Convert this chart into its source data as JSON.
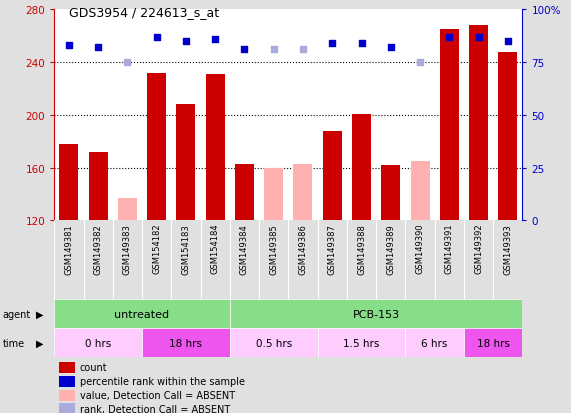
{
  "title": "GDS3954 / 224613_s_at",
  "samples": [
    "GSM149381",
    "GSM149382",
    "GSM149383",
    "GSM154182",
    "GSM154183",
    "GSM154184",
    "GSM149384",
    "GSM149385",
    "GSM149386",
    "GSM149387",
    "GSM149388",
    "GSM149389",
    "GSM149390",
    "GSM149391",
    "GSM149392",
    "GSM149393"
  ],
  "bar_values": [
    178,
    172,
    null,
    232,
    208,
    231,
    163,
    null,
    null,
    188,
    201,
    162,
    null,
    265,
    268,
    248
  ],
  "bar_absent_values": [
    null,
    null,
    137,
    null,
    null,
    null,
    null,
    160,
    163,
    null,
    null,
    null,
    165,
    null,
    null,
    null
  ],
  "percentile_present": [
    83,
    82,
    null,
    87,
    85,
    86,
    81,
    null,
    null,
    84,
    84,
    82,
    null,
    87,
    87,
    85
  ],
  "percentile_absent": [
    null,
    null,
    75,
    null,
    null,
    null,
    null,
    81,
    81,
    null,
    null,
    null,
    75,
    null,
    null,
    null
  ],
  "ylim_left": [
    120,
    280
  ],
  "ylim_right": [
    0,
    100
  ],
  "yticks_left": [
    120,
    160,
    200,
    240,
    280
  ],
  "yticks_right": [
    0,
    25,
    50,
    75,
    100
  ],
  "left_color": "#cc0000",
  "right_color": "#0000cc",
  "bar_color_present": "#cc0000",
  "bar_color_absent": "#ffb0b0",
  "dot_color_present": "#0000cc",
  "dot_color_absent": "#aaaadd",
  "background_color": "#e0e0e0",
  "plot_bg_color": "#ffffff",
  "sample_bg_color": "#c8c8c8",
  "agent_green": "#88dd88",
  "time_pink_light": "#ffccff",
  "time_pink_dark": "#ee55ee",
  "legend_items": [
    {
      "label": "count",
      "color": "#cc0000"
    },
    {
      "label": "percentile rank within the sample",
      "color": "#0000cc"
    },
    {
      "label": "value, Detection Call = ABSENT",
      "color": "#ffb0b0"
    },
    {
      "label": "rank, Detection Call = ABSENT",
      "color": "#aaaadd"
    }
  ],
  "time_groups": [
    {
      "label": "0 hrs",
      "start": 0,
      "end": 3,
      "color": "#ffccff"
    },
    {
      "label": "18 hrs",
      "start": 3,
      "end": 6,
      "color": "#ee55ee"
    },
    {
      "label": "0.5 hrs",
      "start": 6,
      "end": 9,
      "color": "#ffccff"
    },
    {
      "label": "1.5 hrs",
      "start": 9,
      "end": 12,
      "color": "#ffccff"
    },
    {
      "label": "6 hrs",
      "start": 12,
      "end": 14,
      "color": "#ffccff"
    },
    {
      "label": "18 hrs",
      "start": 14,
      "end": 16,
      "color": "#ee55ee"
    }
  ]
}
